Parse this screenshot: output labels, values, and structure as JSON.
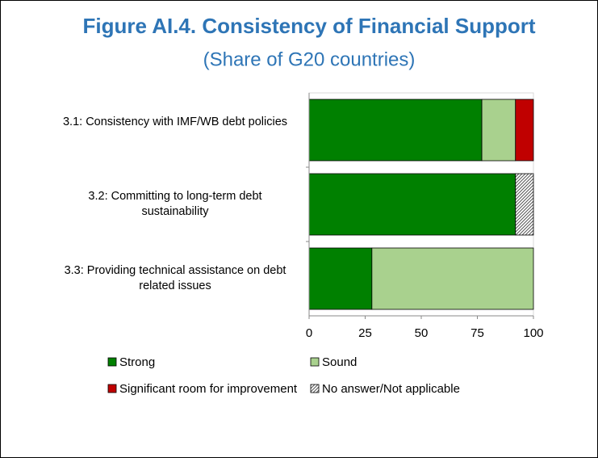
{
  "chart_data": {
    "type": "stacked_barh",
    "title": "Figure AI.4. Consistency of Financial Support",
    "subtitle": "(Share of G20 countries)",
    "categories": [
      "3.1: Consistency with IMF/WB debt policies",
      "3.2: Committing to long-term debt sustainability",
      "3.3: Providing technical assistance on debt related issues"
    ],
    "series": [
      {
        "name": "Strong",
        "color": "#008000",
        "values": [
          77,
          92,
          28
        ]
      },
      {
        "name": "Sound",
        "color": "#a9d18e",
        "values": [
          15,
          0,
          72
        ]
      },
      {
        "name": "Significant room for improvement",
        "color": "#c00000",
        "values": [
          8,
          0,
          0
        ]
      },
      {
        "name": "No answer/Not applicable",
        "color": "#808080",
        "hatch": true,
        "values": [
          0,
          8,
          0
        ]
      }
    ],
    "xlim": [
      0,
      100
    ],
    "xticks": [
      0,
      25,
      50,
      75,
      100
    ]
  }
}
